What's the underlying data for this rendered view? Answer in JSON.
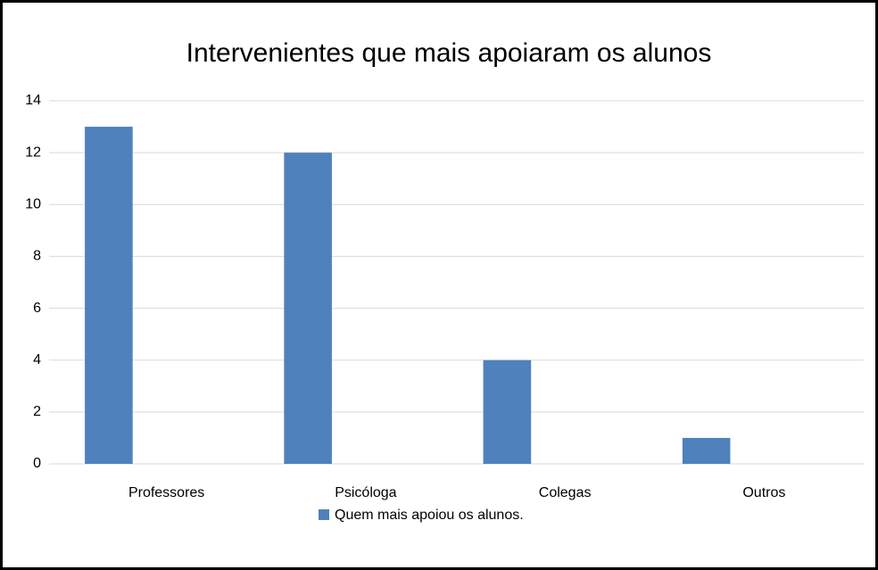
{
  "chart_data": {
    "type": "bar",
    "title": "Intervenientes que mais apoiaram os alunos",
    "categories": [
      "Professores",
      "Psicóloga",
      "Colegas",
      "Outros"
    ],
    "series": [
      {
        "name": "Quem mais apoiou os alunos.",
        "color": "#4f81bd",
        "values": [
          13,
          12,
          4,
          1
        ]
      }
    ],
    "ylim": [
      0,
      14
    ],
    "yticks": [
      0,
      2,
      4,
      6,
      8,
      10,
      12,
      14
    ],
    "grid": true,
    "legend": "bottom"
  }
}
